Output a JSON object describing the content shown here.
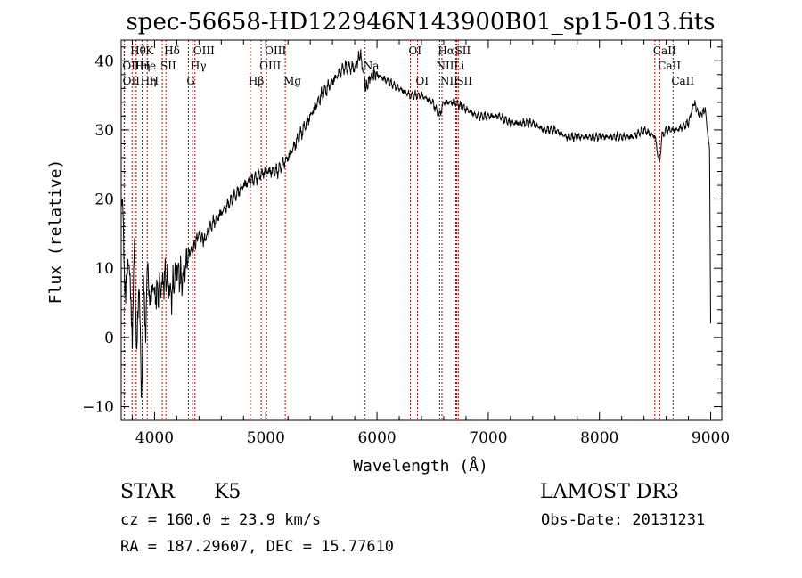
{
  "chart_data": {
    "type": "line",
    "title": "spec-56658-HD122946N143900B01_sp15-013.fits",
    "xlabel": "Wavelength (Å)",
    "ylabel": "Flux (relative)",
    "xlim": [
      3700,
      9100
    ],
    "ylim": [
      -12,
      43
    ],
    "xticks": [
      4000,
      5000,
      6000,
      7000,
      8000,
      9000
    ],
    "yticks": [
      -10,
      0,
      10,
      20,
      30,
      40
    ],
    "grid": false,
    "series": [
      {
        "x": [
          3700,
          3720,
          3740,
          3760,
          3780,
          3800,
          3820,
          3840,
          3860,
          3880,
          3900,
          3920,
          3940,
          3960,
          3980,
          4000,
          4050,
          4100,
          4150,
          4200,
          4250,
          4300,
          4350,
          4400,
          4450,
          4500,
          4600,
          4700,
          4800,
          4900,
          5000,
          5100,
          5200,
          5300,
          5400,
          5500,
          5600,
          5700,
          5800,
          5850,
          5900,
          5950,
          6000,
          6100,
          6200,
          6300,
          6400,
          6500,
          6560,
          6600,
          6700,
          6800,
          6900,
          7000,
          7100,
          7200,
          7300,
          7400,
          7500,
          7600,
          7700,
          7800,
          7900,
          8000,
          8100,
          8200,
          8300,
          8400,
          8500,
          8540,
          8560,
          8600,
          8700,
          8800,
          8850,
          8900,
          8950,
          8990,
          9000
        ],
        "y": [
          22,
          15,
          5,
          12,
          8,
          0,
          14,
          -4,
          10,
          -9,
          6,
          2,
          11,
          4,
          8,
          6,
          7,
          9,
          6,
          10,
          8,
          12,
          13,
          15,
          14,
          16,
          18,
          20,
          22,
          23,
          24,
          24,
          26,
          29,
          32,
          35,
          37,
          39,
          39,
          41,
          36,
          38,
          38,
          37,
          36,
          35,
          35,
          34,
          32,
          34,
          34,
          33,
          32,
          32,
          32,
          31,
          31,
          31,
          30,
          30,
          29,
          29,
          29,
          29,
          29,
          29,
          29,
          30,
          29,
          25,
          29,
          30,
          30,
          31,
          34,
          32,
          33,
          27,
          2
        ]
      }
    ],
    "spectral_lines": [
      {
        "label": "Hθ",
        "wl": 3798,
        "row": 0
      },
      {
        "label": "OII",
        "wl": 3727,
        "row": 1
      },
      {
        "label": "OII",
        "wl": 3729,
        "row": 2
      },
      {
        "label": "Hη",
        "wl": 3835,
        "row": 1
      },
      {
        "label": "He",
        "wl": 3889,
        "row": 1
      },
      {
        "label": "Hη",
        "wl": 3890,
        "row": 2
      },
      {
        "label": "K",
        "wl": 3934,
        "row": 0
      },
      {
        "label": "H",
        "wl": 3969,
        "row": 2
      },
      {
        "label": "SII",
        "wl": 4069,
        "row": 1
      },
      {
        "label": "Hδ",
        "wl": 4102,
        "row": 0
      },
      {
        "label": "OIII",
        "wl": 4363,
        "row": 0
      },
      {
        "label": "Hγ",
        "wl": 4340,
        "row": 1
      },
      {
        "label": "G",
        "wl": 4304,
        "row": 2
      },
      {
        "label": "Hβ",
        "wl": 4861,
        "row": 2
      },
      {
        "label": "OIII",
        "wl": 5007,
        "row": 0
      },
      {
        "label": "OIII",
        "wl": 4959,
        "row": 1
      },
      {
        "label": "Mg",
        "wl": 5175,
        "row": 2
      },
      {
        "label": "Na",
        "wl": 5893,
        "row": 1
      },
      {
        "label": "OI",
        "wl": 6300,
        "row": 0
      },
      {
        "label": "OI",
        "wl": 6364,
        "row": 2
      },
      {
        "label": "Hα",
        "wl": 6563,
        "row": 0
      },
      {
        "label": "NII",
        "wl": 6548,
        "row": 1
      },
      {
        "label": "NII",
        "wl": 6584,
        "row": 2
      },
      {
        "label": "SII",
        "wl": 6717,
        "row": 0
      },
      {
        "label": "Li",
        "wl": 6708,
        "row": 1
      },
      {
        "label": "SII",
        "wl": 6731,
        "row": 2
      },
      {
        "label": "CaII",
        "wl": 8498,
        "row": 0
      },
      {
        "label": "CaII",
        "wl": 8542,
        "row": 1
      },
      {
        "label": "CaII",
        "wl": 8662,
        "row": 2
      }
    ]
  },
  "info": {
    "object_class": "STAR",
    "subclass": "K5",
    "survey": "LAMOST DR3",
    "cz": "cz = 160.0 ± 23.9 km/s",
    "obs_date": "Obs-Date: 20131231",
    "coords": "RA = 187.29607, DEC =  15.77610"
  },
  "colors": {
    "spectrum": "#000000",
    "line_markers": "#b00000"
  }
}
